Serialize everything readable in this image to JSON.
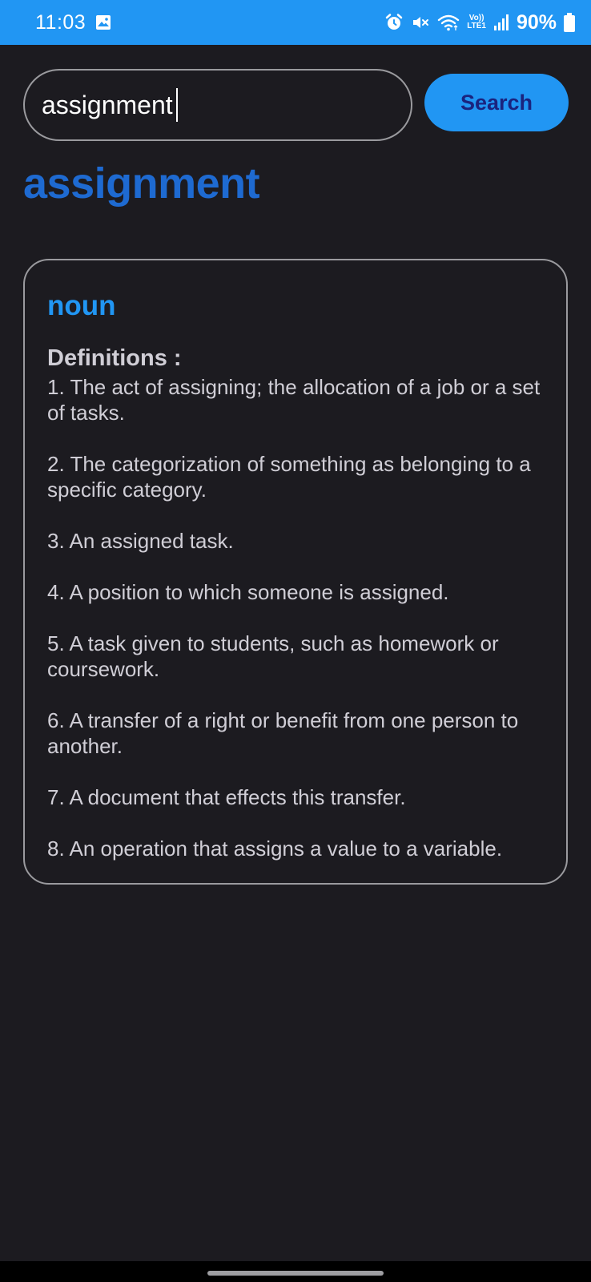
{
  "status_bar": {
    "time": "11:03",
    "battery": "90%",
    "network_label_top": "Vo))",
    "network_label_bottom": "LTE1",
    "icons": [
      "gallery-icon",
      "alarm-icon",
      "mute-icon",
      "wifi-icon",
      "signal-icon",
      "battery-icon"
    ]
  },
  "search": {
    "value": "assignment",
    "button_label": "Search"
  },
  "result": {
    "word": "assignment",
    "meanings": [
      {
        "part_of_speech": "noun",
        "definitions_heading": "Definitions :",
        "definitions": [
          "1. The act of assigning; the allocation of a job or a set of tasks.",
          "2. The categorization of something as belonging to a specific category.",
          "3. An assigned task.",
          "4. A position to which someone is assigned.",
          "5. A task given to students, such as homework or coursework.",
          "6. A transfer of a right or benefit from one person to another.",
          "7. A document that effects this transfer.",
          "8. An operation that assigns a value to a variable."
        ]
      }
    ]
  },
  "colors": {
    "accent": "#2196f3",
    "word_title": "#1e6ad1",
    "background": "#1c1b20",
    "border": "#9a9a9e",
    "button_text": "#1a237e"
  }
}
